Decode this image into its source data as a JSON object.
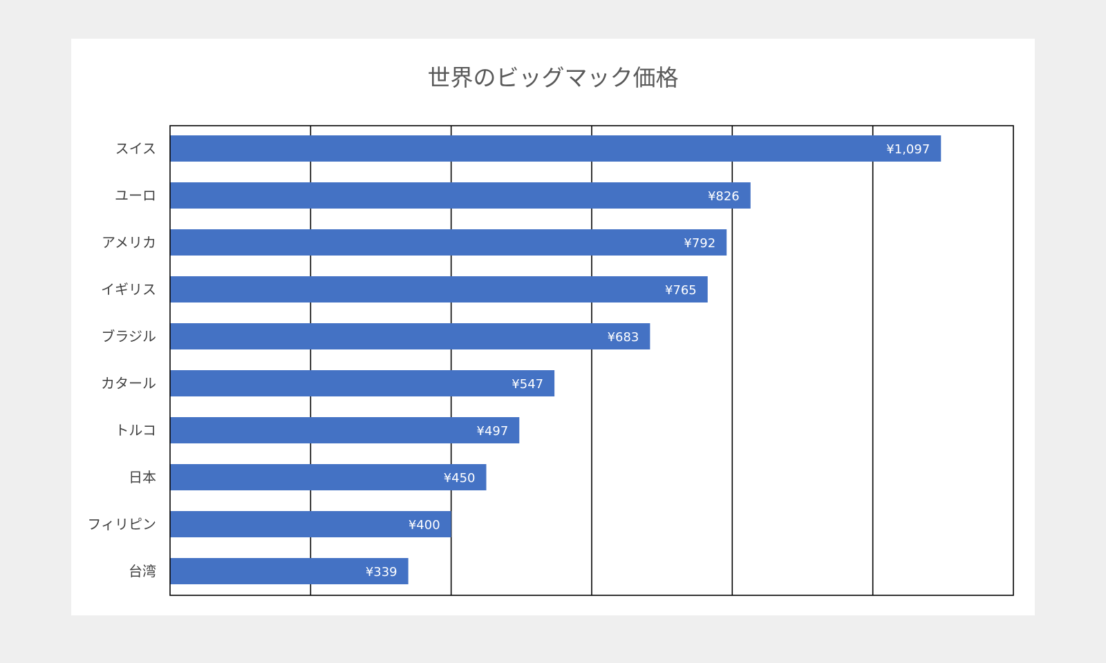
{
  "chart_data": {
    "type": "bar",
    "orientation": "horizontal",
    "title": "世界のビッグマック価格",
    "xlabel": "",
    "ylabel": "",
    "xlim": [
      0,
      1200
    ],
    "grid": true,
    "categories": [
      "スイス",
      "ユーロ",
      "アメリカ",
      "イギリス",
      "ブラジル",
      "カタール",
      "トルコ",
      "日本",
      "フィリピン",
      "台湾"
    ],
    "values": [
      1097,
      826,
      792,
      765,
      683,
      547,
      497,
      450,
      400,
      339
    ],
    "data_labels": [
      "¥1,097",
      "¥826",
      "¥792",
      "¥765",
      "¥683",
      "¥547",
      "¥497",
      "¥450",
      "¥400",
      "¥339"
    ],
    "colors": {
      "bar": "#4472c4",
      "data_label": "#ffffff",
      "category_label": "#404040",
      "gridline": "#000000"
    }
  }
}
